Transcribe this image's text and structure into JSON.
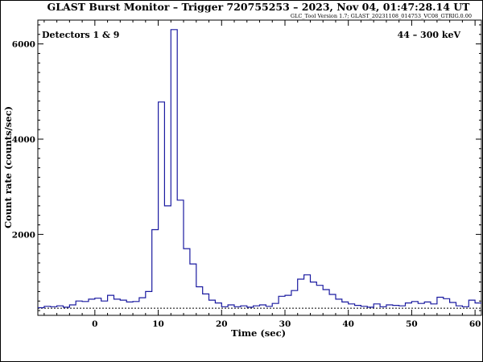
{
  "chart_data": {
    "type": "line",
    "step": true,
    "title": "GLAST Burst Monitor  –  Trigger 720755253  –  2023, Nov 04, 01:47:28.14 UT",
    "subtitle": "GLC_Tool Version 1.7; GLAST_20231108_014753_VC08_GTRIG.0.00",
    "detectors_label": "Detectors 1 & 9",
    "energy_label": "44 – 300 keV",
    "xlabel": "Time (sec)",
    "ylabel": "Count rate (counts/sec)",
    "xlim": [
      -9,
      61
    ],
    "ylim": [
      300,
      6500
    ],
    "x_ticks": [
      0,
      10,
      20,
      30,
      40,
      50,
      60
    ],
    "y_ticks": [
      2000,
      4000,
      6000
    ],
    "background_level": 450,
    "bin_width": 1,
    "series": [
      {
        "color": "#1a1aa0",
        "x": [
          -9,
          -8,
          -7,
          -6,
          -5,
          -4,
          -3,
          -2,
          -1,
          0,
          1,
          2,
          3,
          4,
          5,
          6,
          7,
          8,
          9,
          10,
          11,
          12,
          13,
          14,
          15,
          16,
          17,
          18,
          19,
          20,
          21,
          22,
          23,
          24,
          25,
          26,
          27,
          28,
          29,
          30,
          31,
          32,
          33,
          34,
          35,
          36,
          37,
          38,
          39,
          40,
          41,
          42,
          43,
          44,
          45,
          46,
          47,
          48,
          49,
          50,
          51,
          52,
          53,
          54,
          55,
          56,
          57,
          58,
          59,
          60
        ],
        "y": [
          460,
          490,
          480,
          500,
          470,
          520,
          600,
          590,
          640,
          660,
          600,
          720,
          640,
          620,
          580,
          590,
          670,
          800,
          2100,
          4780,
          2600,
          6300,
          2720,
          1700,
          1380,
          900,
          750,
          620,
          560,
          480,
          520,
          480,
          500,
          470,
          500,
          520,
          490,
          550,
          700,
          720,
          820,
          1060,
          1150,
          1000,
          930,
          840,
          740,
          640,
          580,
          540,
          510,
          490,
          470,
          540,
          480,
          520,
          510,
          500,
          560,
          590,
          550,
          580,
          540,
          680,
          650,
          570,
          500,
          480,
          620,
          560
        ]
      }
    ]
  }
}
